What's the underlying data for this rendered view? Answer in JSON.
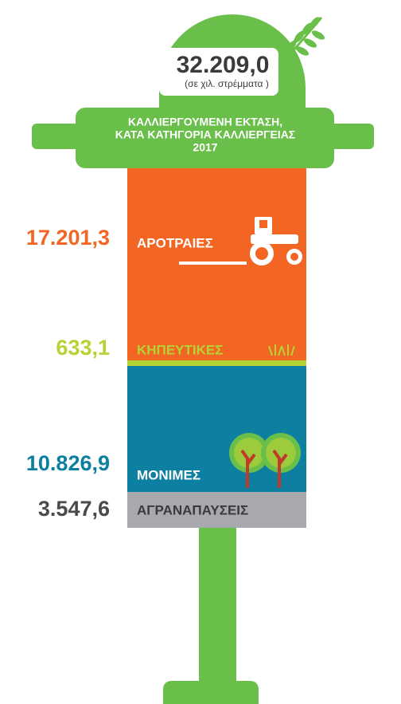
{
  "total": {
    "value": "32.209,0",
    "unit": "(σε χιλ. στρέμματα )"
  },
  "title": [
    "ΚΑΛΛΙΕΡΓΟΥΜΕΝΗ ΕΚΤΑΣΗ,",
    "ΚΑΤΑ ΚΑΤΗΓΟΡΙΑ ΚΑΛΛΙΕΡΓΕΙΑΣ",
    "2017"
  ],
  "segments": [
    {
      "name": "ΑΡΟΤΡΑΙΕΣ",
      "value": "17.201,3"
    },
    {
      "name": "ΚΗΠΕΥΤΙΚΕΣ",
      "value": "633,1"
    },
    {
      "name": "ΜΟΝΙΜΕΣ",
      "value": "10.826,9"
    },
    {
      "name": "ΑΓΡΑΝΑΠΑΥΣΕΙΣ",
      "value": "3.547,6"
    }
  ]
}
